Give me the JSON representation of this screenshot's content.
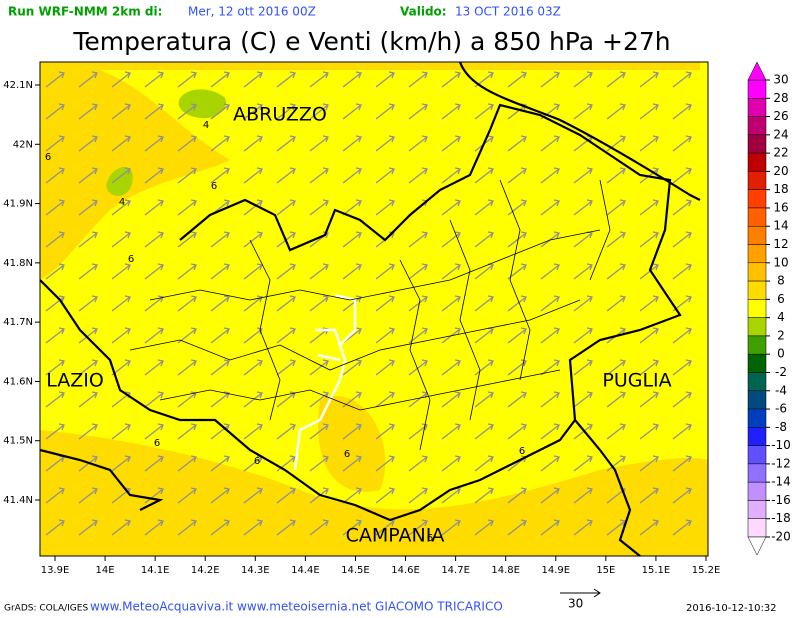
{
  "header": {
    "run": "Run WRF-NMM 2km di:",
    "run_date": "Mer, 12 ott 2016 00Z",
    "valid_label": "Valido:",
    "valid_date": "13 OCT 2016 03Z",
    "title": "Temperatura (C) e Venti (km/h) a 850 hPa +27h"
  },
  "map": {
    "xticks": [
      "13.9E",
      "14E",
      "14.1E",
      "14.2E",
      "14.3E",
      "14.4E",
      "14.5E",
      "14.6E",
      "14.7E",
      "14.8E",
      "14.9E",
      "15E",
      "15.1E",
      "15.2E"
    ],
    "yticks": [
      "42.1N",
      "42N",
      "41.9N",
      "41.8N",
      "41.7N",
      "41.6N",
      "41.5N",
      "41.4N"
    ],
    "regions": [
      "ABRUZZO",
      "LAZIO",
      "PUGLIA",
      "CAMPANIA"
    ],
    "contour_labels": [
      "4",
      "4",
      "6",
      "6",
      "6",
      "6",
      "6",
      "6",
      "6",
      "6"
    ]
  },
  "colorbar": {
    "levels": [
      30,
      28,
      26,
      24,
      22,
      20,
      18,
      16,
      14,
      12,
      10,
      8,
      6,
      4,
      2,
      0,
      -2,
      -4,
      -6,
      -8,
      -10,
      -12,
      -14,
      -16,
      -18,
      -20
    ],
    "colors": [
      "#ff00ff",
      "#e000b0",
      "#c00070",
      "#a00040",
      "#c00000",
      "#e02000",
      "#ff4000",
      "#ff6000",
      "#ff8000",
      "#ffa000",
      "#ffc000",
      "#ffdc00",
      "#ffff00",
      "#a8d400",
      "#40a000",
      "#006400",
      "#006450",
      "#004a80",
      "#0040c0",
      "#2020ff",
      "#6050ff",
      "#9070ff",
      "#c090ff",
      "#e0b0ff",
      "#ffd8ff"
    ]
  },
  "footer": {
    "source": "GrADS: COLA/IGES",
    "site": "www.MeteoAcquaviva.it www.meteoisernia.net GIACOMO TRICARICO",
    "vector_ref": 30,
    "timestamp": "2016-10-12-10:32"
  }
}
